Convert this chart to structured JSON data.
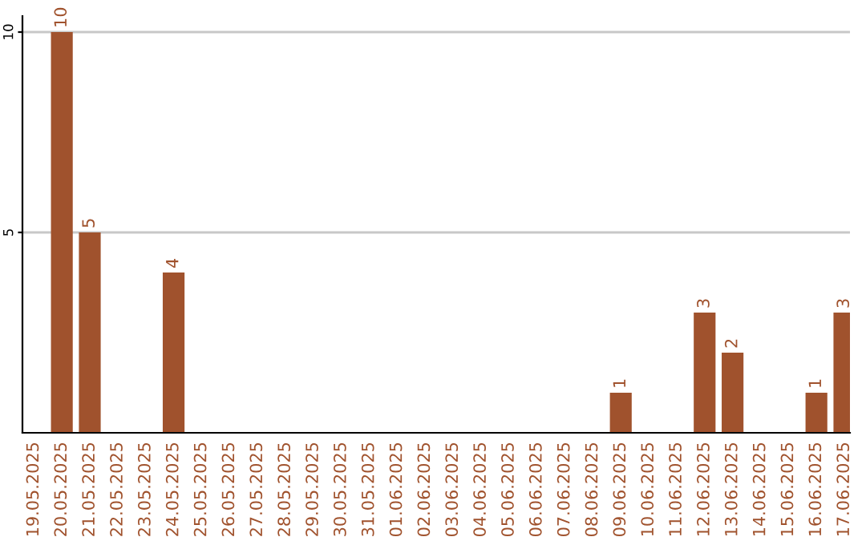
{
  "chart_data": {
    "type": "bar",
    "categories": [
      "19.05.2025",
      "20.05.2025",
      "21.05.2025",
      "22.05.2025",
      "23.05.2025",
      "24.05.2025",
      "25.05.2025",
      "26.05.2025",
      "27.05.2025",
      "28.05.2025",
      "29.05.2025",
      "30.05.2025",
      "31.05.2025",
      "01.06.2025",
      "02.06.2025",
      "03.06.2025",
      "04.06.2025",
      "05.06.2025",
      "06.06.2025",
      "07.06.2025",
      "08.06.2025",
      "09.06.2025",
      "10.06.2025",
      "11.06.2025",
      "12.06.2025",
      "13.06.2025",
      "14.06.2025",
      "15.06.2025",
      "16.06.2025",
      "17.06.2025"
    ],
    "values": [
      0,
      10,
      5,
      0,
      0,
      4,
      0,
      0,
      0,
      0,
      0,
      0,
      0,
      0,
      0,
      0,
      0,
      0,
      0,
      0,
      0,
      1,
      0,
      0,
      3,
      2,
      0,
      0,
      1,
      3
    ],
    "value_labels": [
      null,
      "10",
      "5",
      null,
      null,
      "4",
      null,
      null,
      null,
      null,
      null,
      null,
      null,
      null,
      null,
      null,
      null,
      null,
      null,
      null,
      null,
      "1",
      null,
      null,
      "3",
      "2",
      null,
      null,
      "1",
      "3"
    ],
    "color": "#a0522d",
    "ylim": [
      0,
      10.4
    ],
    "yticks": [
      5,
      10
    ],
    "grid": "y"
  }
}
